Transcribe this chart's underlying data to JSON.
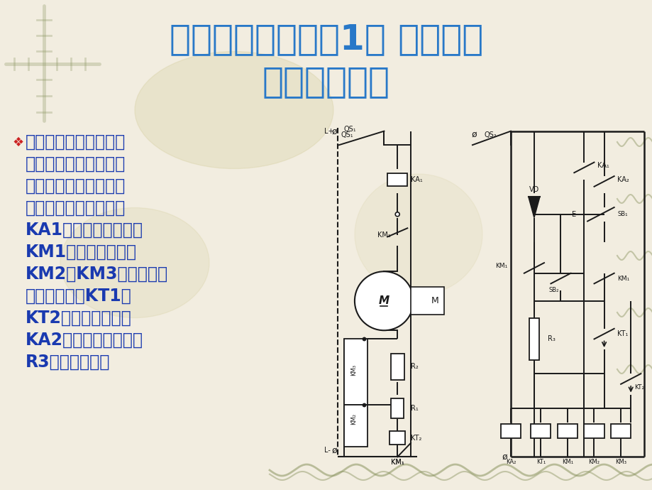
{
  "bg_color": "#f2ede0",
  "title_line1": "第二章第八节（续1） 单相运转",
  "title_line2": "起动控制电路",
  "title_color": "#2878c8",
  "body_color": "#1a3ab0",
  "bullet_color": "#cc2222",
  "diagram_color": "#1a1a1a",
  "watermark_color": "#8a9460",
  "body_lines": [
    "右图为直流电动机电枢",
    "回路串电阻起动控制电",
    "路。电枢串二级电阻，",
    "按时间原则起动。图中",
    "KA1为过电流继电器，",
    "KM1为起动接触器，",
    "KM2、KM3为短接起动",
    "电阻接触器，KT1、",
    "KT2为时间继电器，",
    "KA2为欠电流继电器，",
    "R3为放电电阻。"
  ],
  "font_size_title": 36,
  "font_size_body": 17,
  "font_size_diagram": 7
}
